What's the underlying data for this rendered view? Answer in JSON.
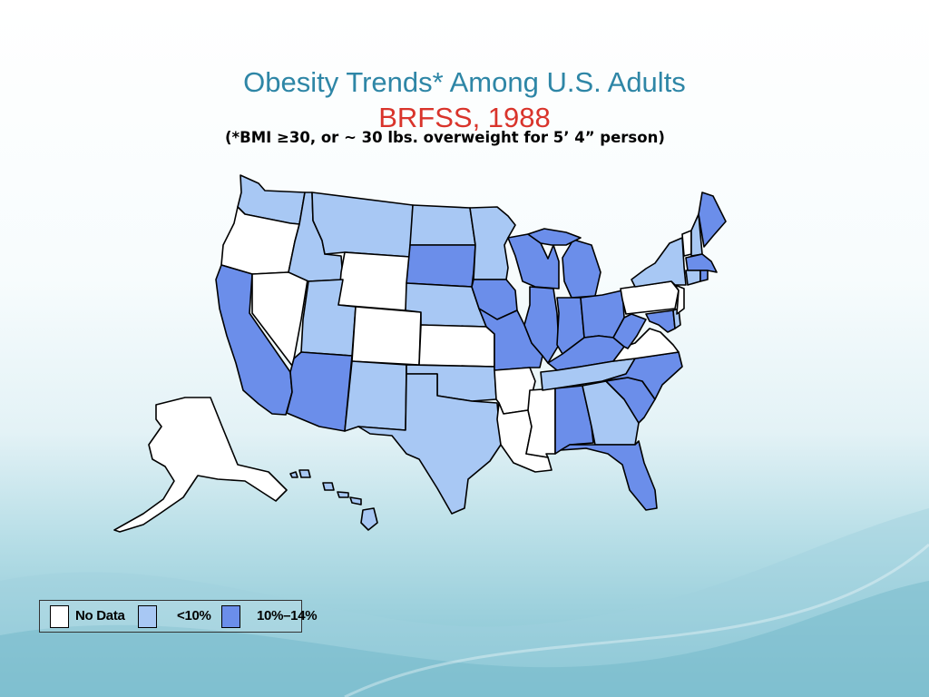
{
  "title": {
    "main": "Obesity Trends* Among U.S. Adults",
    "main_color": "#2e86a6",
    "sub": "BRFSS, 1988",
    "sub_color": "#d9342b"
  },
  "subtitle": "(*BMI ≥30, or ~ 30 lbs. overweight for 5’ 4” person)",
  "colors": {
    "no_data": "#ffffff",
    "lt10": "#a8c8f4",
    "10to14": "#6b8eea"
  },
  "legend": [
    {
      "label": "No Data",
      "category": "no_data"
    },
    {
      "label": "<10%",
      "category": "lt10"
    },
    {
      "label": "10%–14%",
      "category": "10to14"
    }
  ],
  "states": {
    "WA": "lt10",
    "OR": "no_data",
    "CA": "10to14",
    "NV": "no_data",
    "ID": "lt10",
    "MT": "lt10",
    "WY": "no_data",
    "UT": "lt10",
    "AZ": "10to14",
    "CO": "no_data",
    "NM": "lt10",
    "ND": "lt10",
    "SD": "10to14",
    "NE": "lt10",
    "KS": "no_data",
    "OK": "lt10",
    "TX": "lt10",
    "MN": "lt10",
    "IA": "10to14",
    "MO": "10to14",
    "AR": "no_data",
    "LA": "no_data",
    "WI": "10to14",
    "IL": "10to14",
    "MS": "no_data",
    "MI": "10to14",
    "IN": "10to14",
    "OH": "10to14",
    "KY": "10to14",
    "TN": "lt10",
    "AL": "10to14",
    "GA": "lt10",
    "FL": "10to14",
    "SC": "10to14",
    "NC": "10to14",
    "VA": "no_data",
    "WV": "10to14",
    "MD": "10to14",
    "DE": "lt10",
    "PA": "no_data",
    "NJ": "no_data",
    "NY": "lt10",
    "CT": "lt10",
    "RI": "10to14",
    "MA": "10to14",
    "VT": "no_data",
    "NH": "lt10",
    "ME": "10to14",
    "AK": "no_data",
    "HI": "lt10"
  }
}
